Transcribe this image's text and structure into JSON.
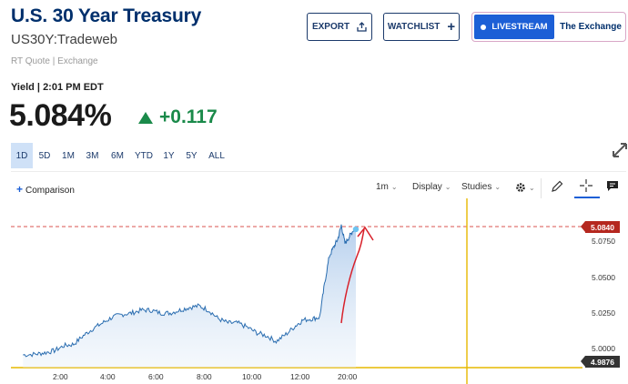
{
  "header": {
    "title": "U.S. 30 Year Treasury",
    "symbol": "US30Y:Tradeweb",
    "quote_source": "RT Quote | Exchange"
  },
  "actions": {
    "export_label": "EXPORT",
    "watchlist_label": "WATCHLIST",
    "livestream_label": "LIVESTREAM",
    "exchange_label": "The Exchange"
  },
  "quote": {
    "yield_label": "Yield | 2:01 PM EDT",
    "price": "5.084%",
    "change": "+0.117",
    "change_color": "#1a8a4a"
  },
  "ranges": [
    "1D",
    "5D",
    "1M",
    "3M",
    "6M",
    "YTD",
    "1Y",
    "5Y",
    "ALL"
  ],
  "active_range": "1D",
  "toolbar": {
    "comparison_label": "Comparison",
    "interval_label": "1m",
    "display_label": "Display",
    "studies_label": "Studies"
  },
  "chart_data": {
    "type": "area",
    "x_ticks": [
      "2:00",
      "4:00",
      "6:00",
      "8:00",
      "10:00",
      "12:00",
      "20:00"
    ],
    "y_ticks": [
      "5.0750",
      "5.0500",
      "5.0250",
      "5.0000"
    ],
    "current_value_tag": "5.0840",
    "low_value_tag": "4.9876",
    "line_color": "#2a6db0",
    "reference_line_color": "#d9534f",
    "annotation_color": "#d8202a",
    "series": [
      {
        "values": [
          [
            0.5,
            4.9955
          ],
          [
            1.0,
            4.996
          ],
          [
            1.4,
            4.997
          ],
          [
            1.8,
            4.9985
          ],
          [
            2.2,
            5.002
          ],
          [
            2.6,
            5.003
          ],
          [
            3.0,
            5.009
          ],
          [
            3.4,
            5.014
          ],
          [
            3.8,
            5.018
          ],
          [
            4.2,
            5.022
          ],
          [
            4.6,
            5.024
          ],
          [
            5.0,
            5.025
          ],
          [
            5.4,
            5.027
          ],
          [
            5.8,
            5.027
          ],
          [
            6.2,
            5.025
          ],
          [
            6.6,
            5.025
          ],
          [
            7.0,
            5.027
          ],
          [
            7.4,
            5.029
          ],
          [
            7.8,
            5.03
          ],
          [
            8.2,
            5.027
          ],
          [
            8.6,
            5.021
          ],
          [
            9.0,
            5.018
          ],
          [
            9.4,
            5.018
          ],
          [
            9.8,
            5.015
          ],
          [
            10.2,
            5.011
          ],
          [
            10.6,
            5.009
          ],
          [
            11.0,
            5.005
          ],
          [
            11.4,
            5.01
          ],
          [
            11.8,
            5.016
          ],
          [
            12.1,
            5.02
          ],
          [
            12.5,
            5.021
          ],
          [
            12.8,
            5.022
          ],
          [
            13.0,
            5.045
          ],
          [
            13.2,
            5.065
          ],
          [
            13.4,
            5.072
          ],
          [
            13.55,
            5.077
          ],
          [
            13.7,
            5.087
          ],
          [
            13.85,
            5.074
          ],
          [
            14.0,
            5.078
          ],
          [
            14.15,
            5.082
          ],
          [
            14.3,
            5.084
          ]
        ]
      }
    ]
  }
}
